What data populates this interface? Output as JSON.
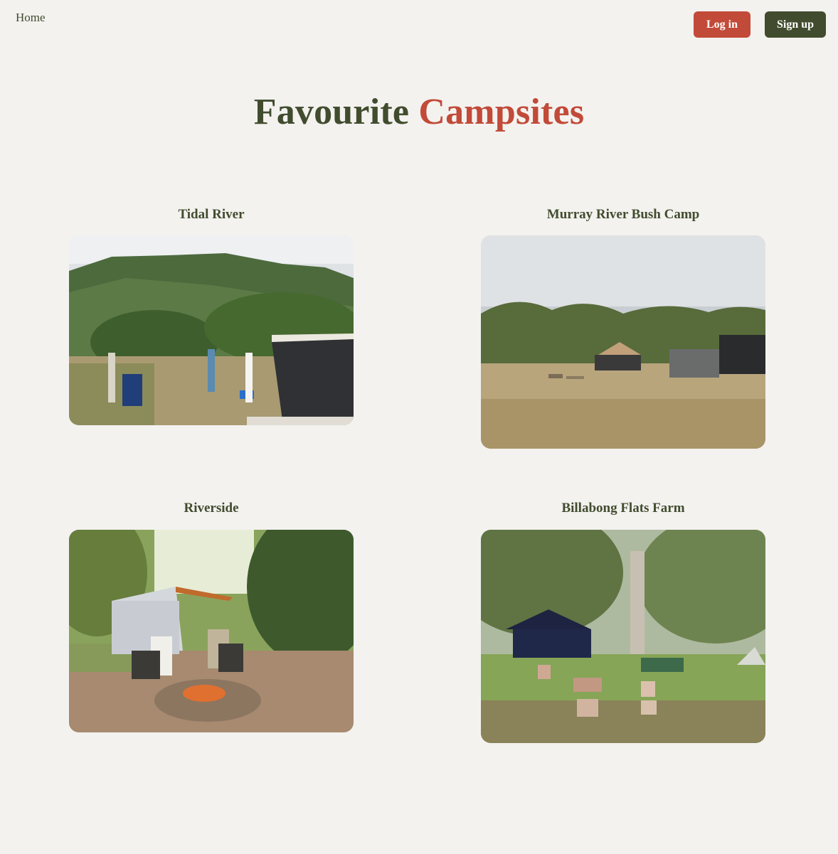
{
  "nav": {
    "home_label": "Home"
  },
  "auth": {
    "login_label": "Log in",
    "signup_label": "Sign up"
  },
  "title": {
    "part1": "Favourite",
    "part2": "Campsites"
  },
  "campsites": [
    {
      "name": "Tidal River"
    },
    {
      "name": "Murray River Bush Camp"
    },
    {
      "name": "Riverside"
    },
    {
      "name": "Billabong Flats Farm"
    }
  ],
  "colors": {
    "olive": "#414c2e",
    "rust": "#c24a38",
    "background": "#f3f2ef"
  }
}
